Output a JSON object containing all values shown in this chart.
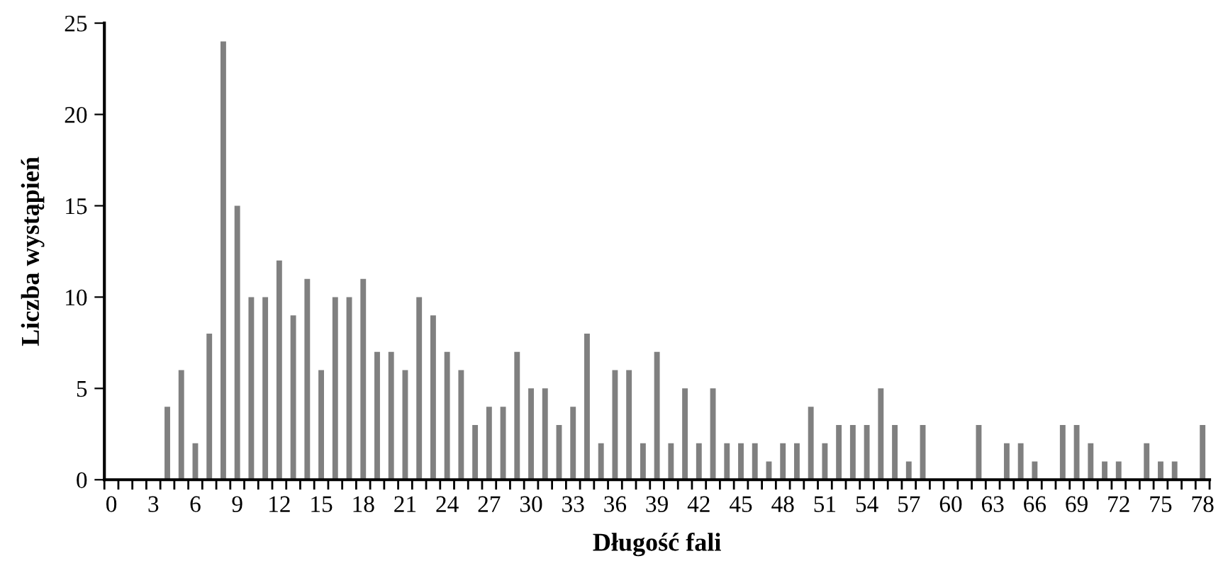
{
  "chart_data": {
    "type": "bar",
    "xlabel": "Długość fali",
    "ylabel": "Liczba wystąpień",
    "categories": [
      "0",
      null,
      null,
      "3",
      null,
      null,
      "6",
      null,
      null,
      "9",
      null,
      null,
      "12",
      null,
      null,
      "15",
      null,
      null,
      "18",
      null,
      null,
      "21",
      null,
      null,
      "24",
      null,
      null,
      "27",
      null,
      null,
      "30",
      null,
      null,
      "33",
      null,
      null,
      "36",
      null,
      null,
      "39",
      null,
      null,
      "42",
      null,
      null,
      "45",
      null,
      null,
      "48",
      null,
      null,
      "51",
      null,
      null,
      "54",
      null,
      null,
      "57",
      null,
      null,
      "60",
      null,
      null,
      "63",
      null,
      null,
      "66",
      null,
      null,
      "69",
      null,
      null,
      "72",
      null,
      null,
      "75",
      null,
      null,
      "78"
    ],
    "values": [
      0,
      0,
      0,
      0,
      4,
      6,
      2,
      8,
      24,
      15,
      10,
      10,
      12,
      9,
      11,
      6,
      10,
      10,
      11,
      7,
      7,
      6,
      10,
      9,
      7,
      6,
      3,
      4,
      4,
      7,
      5,
      5,
      3,
      4,
      8,
      2,
      6,
      6,
      2,
      7,
      2,
      5,
      2,
      5,
      2,
      2,
      2,
      1,
      2,
      2,
      4,
      2,
      3,
      3,
      3,
      5,
      3,
      1,
      3,
      0,
      0,
      0,
      3,
      0,
      2,
      2,
      1,
      0,
      3,
      3,
      2,
      1,
      1,
      0,
      2,
      1,
      1,
      0,
      3
    ],
    "color": "#808080",
    "ylim": [
      0,
      25
    ],
    "yticks": [
      0,
      5,
      10,
      15,
      20,
      25
    ],
    "grid": false,
    "legend": false
  }
}
